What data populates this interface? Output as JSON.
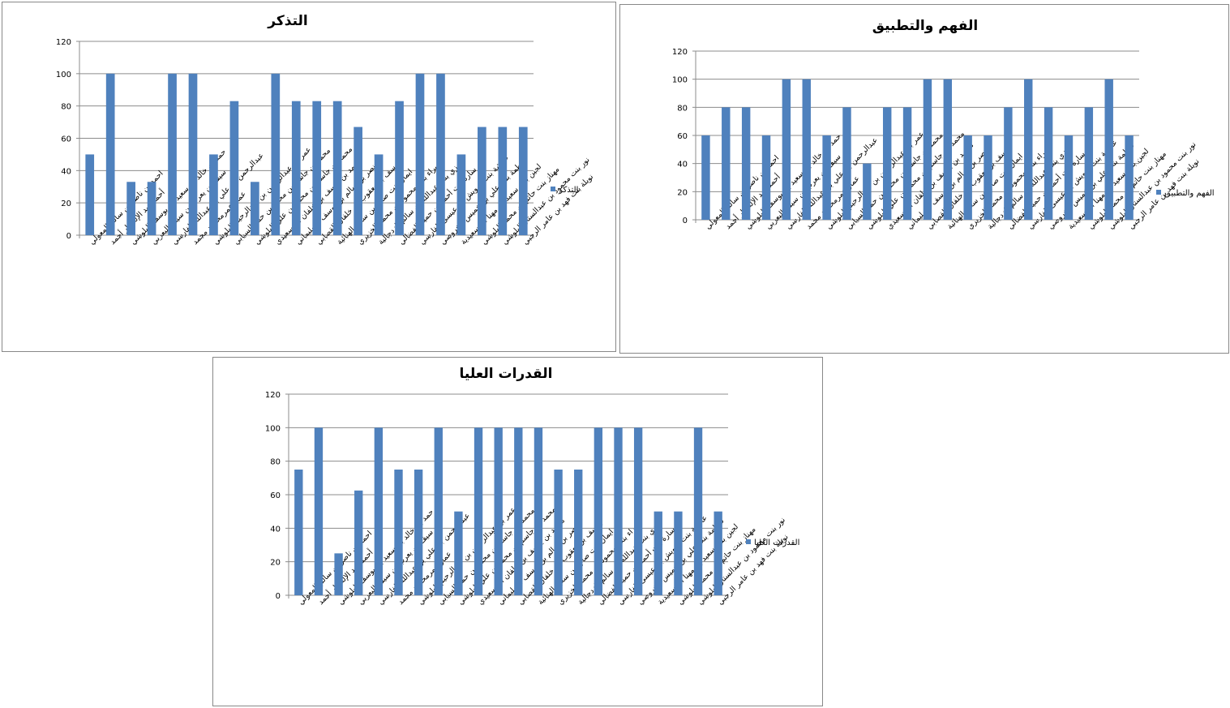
{
  "chart_data": [
    {
      "type": "bar",
      "title": "التذكر",
      "xlabel": "",
      "ylabel": "",
      "ylim": [
        0,
        120
      ],
      "yticks": [
        0,
        20,
        40,
        60,
        80,
        100,
        120
      ],
      "grid": true,
      "legend_position": "right",
      "color": "#4f81bd",
      "categories": [
        "احمد بن ناصر بن سالم المعولي",
        "أحمد عبد الإله دار أحمد",
        "حمد بن خالد بن سعيد بن يوسف البلوشي",
        "سيف بن يعرب بن سيف اليعربي",
        "عبدالرحمن بن علي بن عبدالله الفارسي",
        "عمار عمرمحمود محمد",
        "عمر بن عبدالرحمن بن عبدالرحيم البلوشي",
        "محمد بن جاسم بن محمد بن حمد السيابي",
        "محمد بن جاسم بن محمد بن علي البلوشي",
        "محمد بن يوسف بن خلفان البوسعيدي",
        "نصر بن سالم بن يوسف السليماني",
        "يوسف بن يعقوب بن خلفان القصابي",
        "ايمان بنت صالح بن سعيد الهنائية",
        "براء بنت محمود بن محمد الخزيري",
        "رزي بنت عبدالله بن سالم الزدجالية",
        "سارة بنت أحمد بن حميد الفضالي",
        "عائشة بنت درويش بن عيسى الفارسي",
        "فاطمة بنت علي بن خميس الخروصي",
        "لجين بنت سعيد بن مهنا البوسعيدية",
        "مهناز بنت حاتم بن محمد البلوشي",
        "نور بنت محمود بن عبدالستار البلوشي",
        "نويلة بنت فهد بن عامر الرحبي"
      ],
      "series": [
        {
          "name": "التذكر",
          "values": [
            50,
            100,
            33,
            33,
            100,
            100,
            50,
            83,
            33,
            100,
            83,
            83,
            83,
            67,
            50,
            83,
            100,
            100,
            50,
            67,
            67,
            67
          ]
        }
      ]
    },
    {
      "type": "bar",
      "title": "الفهم والتطبيق",
      "xlabel": "",
      "ylabel": "",
      "ylim": [
        0,
        120
      ],
      "yticks": [
        0,
        20,
        40,
        60,
        80,
        100,
        120
      ],
      "grid": true,
      "legend_position": "right",
      "color": "#4f81bd",
      "categories": [
        "احمد بن ناصر بن سالم المعولي",
        "أحمد عبد الإله دار أحمد",
        "حمد بن خالد بن سعيد بن يوسف البلوشي",
        "سيف بن يعرب بن سيف اليعربي",
        "عبدالرحمن بن علي بن عبدالله الفارسي",
        "عمار عمرمحمود محمد",
        "عمر بن عبدالرحمن بن عبدالرحيم البلوشي",
        "محمد بن جاسم بن محمد بن حمد السيابي",
        "محمد بن جاسم بن محمد بن علي البلوشي",
        "محمد بن يوسف بن خلفان البوسعيدي",
        "نصر بن سالم بن يوسف السليماني",
        "يوسف بن يعقوب بن خلفان القصابي",
        "ايمان بنت صالح بن سعيد الهنائية",
        "براء بنت محمود بن محمد الخزيري",
        "رزي بنت عبدالله بن سالم الزدجالية",
        "سارة بنت أحمد بن حميد الفضالي",
        "عائشة بنت درويش بن عيسى الفارسي",
        "فاطمة بنت علي بن خميس الخروصي",
        "لجين بنت سعيد بن مهنا البوسعيدية",
        "مهناز بنت حاتم بن محمد البلوشي",
        "نور بنت محمود بن عبدالستار البلوشي",
        "نويلة بنت فهد بن عامر الرحبي"
      ],
      "series": [
        {
          "name": "الفهم والتطبيق",
          "values": [
            60,
            80,
            80,
            60,
            100,
            100,
            60,
            80,
            40,
            80,
            80,
            100,
            100,
            60,
            60,
            80,
            100,
            80,
            60,
            80,
            100,
            60
          ]
        }
      ]
    },
    {
      "type": "bar",
      "title": "القدرات العليا",
      "xlabel": "",
      "ylabel": "",
      "ylim": [
        0,
        120
      ],
      "yticks": [
        0,
        20,
        40,
        60,
        80,
        100,
        120
      ],
      "grid": true,
      "legend_position": "right",
      "color": "#4f81bd",
      "categories": [
        "احمد بن ناصر بن سالم المعولي",
        "أحمد عبد الإله دار أحمد",
        "حمد بن خالد بن سعيد بن يوسف البلوشي",
        "سيف بن يعرب بن سيف اليعربي",
        "عبدالرحمن بن علي بن عبدالله الفارسي",
        "عمار عمرمحمود محمد",
        "عمر بن عبدالرحمن بن عبدالرحيم البلوشي",
        "محمد بن جاسم بن محمد بن حمد السيابي",
        "محمد بن جاسم بن محمد بن علي البلوشي",
        "محمد بن يوسف بن خلفان البوسعيدي",
        "نصر بن سالم بن يوسف السليماني",
        "يوسف بن يعقوب بن خلفان القصابي",
        "ايمان بنت صالح بن سعيد الهنائية",
        "براء بنت محمود بن محمد الخزيري",
        "رزي بنت عبدالله بن سالم الزدجالية",
        "سارة بنت أحمد بن حميد الفضالي",
        "عائشة بنت درويش بن عيسى الفارسي",
        "فاطمة بنت علي بن خميس الخروصي",
        "لجين بنت سعيد بن مهنا البوسعيدية",
        "مهناز بنت حاتم بن محمد البلوشي",
        "نور بنت محمود بن عبدالستار البلوشي",
        "نويلة بنت فهد بن عامر الرحبي"
      ],
      "series": [
        {
          "name": "القدرات العليا",
          "values": [
            75,
            100,
            25,
            62.5,
            100,
            75,
            75,
            100,
            50,
            100,
            100,
            100,
            100,
            75,
            75,
            100,
            100,
            100,
            50,
            50,
            100,
            50
          ]
        }
      ]
    }
  ]
}
